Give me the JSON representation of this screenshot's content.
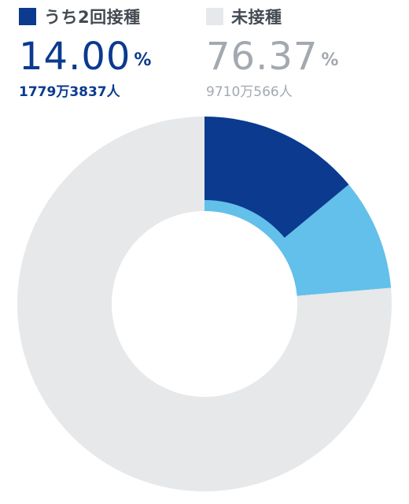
{
  "legend": {
    "second_dose": {
      "label": "うち2回接種",
      "percent": "14.00",
      "unit": "%",
      "count": "1779万3837人"
    },
    "unvaccinated": {
      "label": "未接種",
      "percent": "76.37",
      "unit": "%",
      "count": "9710万566人"
    }
  },
  "colors": {
    "second_dose": "#0b3a8f",
    "first_dose_only": "#62c0ea",
    "unvaccinated": "#e6e8ea",
    "legend_text": "#444a52",
    "unvaccinated_text": "#a3a9b0"
  },
  "chart_data": {
    "type": "pie",
    "title": "",
    "style": "donut",
    "start_angle": "12 o'clock",
    "direction": "clockwise",
    "slices": [
      {
        "name": "うち2回接種",
        "value": 14.0,
        "color": "#0b3a8f",
        "layer": "inner"
      },
      {
        "name": "",
        "value": 23.63,
        "color": "#62c0ea",
        "layer": "full"
      },
      {
        "name": "未接種",
        "value": 76.37,
        "color": "#e6e8ea",
        "layer": "full"
      }
    ]
  }
}
